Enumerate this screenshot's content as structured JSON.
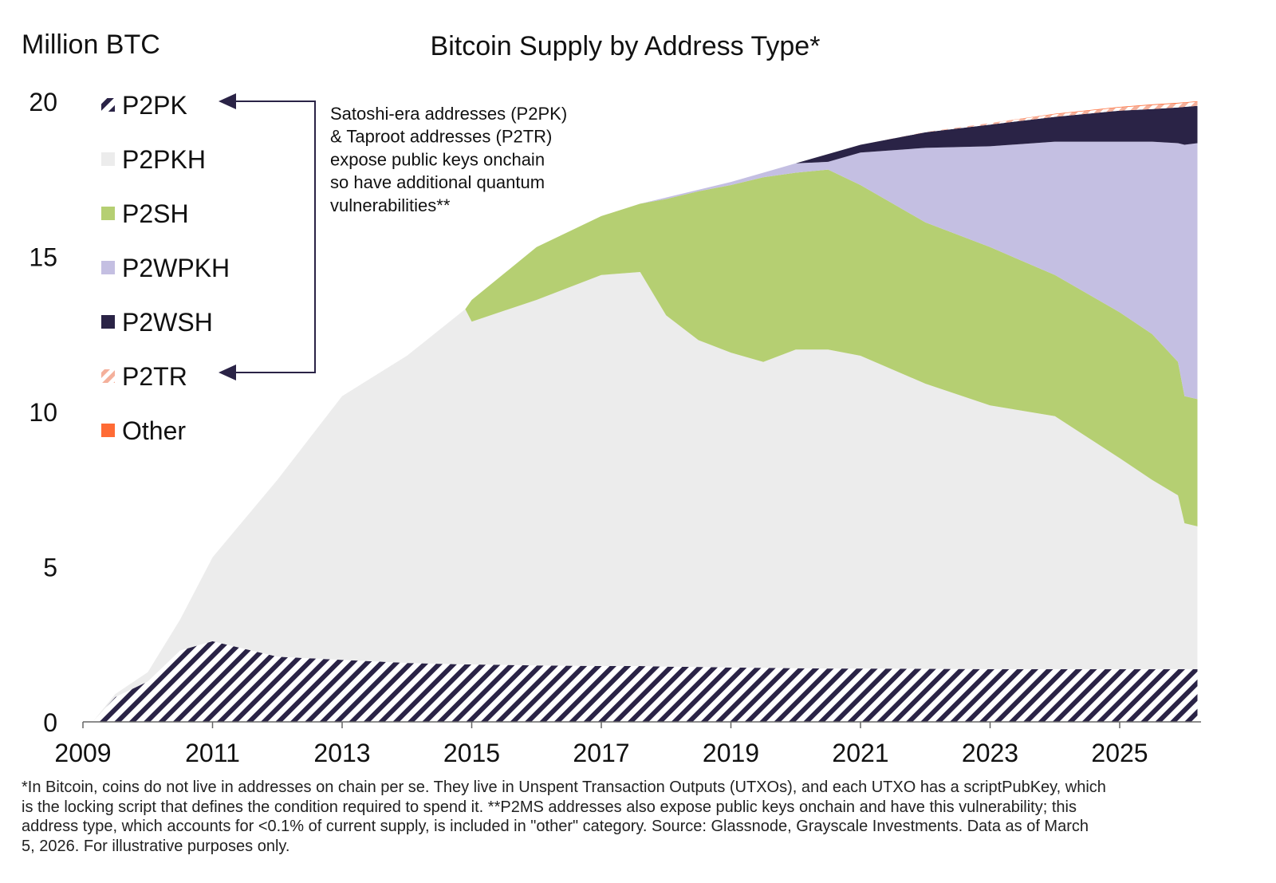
{
  "chart_data": {
    "type": "area",
    "stacked": true,
    "title": "Bitcoin Supply by Address Type*",
    "ylabel": "Million BTC",
    "xlabel": "",
    "ylim": [
      0,
      20
    ],
    "xlim": [
      2009,
      2026.2
    ],
    "yticks": [
      0,
      5,
      10,
      15,
      20
    ],
    "xticks": [
      2009,
      2011,
      2013,
      2015,
      2017,
      2019,
      2021,
      2023,
      2025
    ],
    "grid": false,
    "legend_position": "top-left",
    "x": [
      2009.15,
      2009.5,
      2010,
      2010.5,
      2011,
      2012,
      2013,
      2014,
      2014.9,
      2015,
      2016,
      2017,
      2017.6,
      2018,
      2018.5,
      2019,
      2019.5,
      2020,
      2020.5,
      2021,
      2022,
      2023,
      2024,
      2025,
      2025.5,
      2025.9,
      2026.0,
      2026.2
    ],
    "series": [
      {
        "name": "P2PK",
        "color": "#2a2346",
        "pattern": "hatched",
        "values": [
          0,
          0.8,
          1.3,
          2.3,
          2.6,
          2.1,
          2.0,
          1.9,
          1.85,
          1.85,
          1.82,
          1.8,
          1.8,
          1.78,
          1.77,
          1.75,
          1.74,
          1.73,
          1.72,
          1.72,
          1.71,
          1.7,
          1.7,
          1.7,
          1.7,
          1.7,
          1.7,
          1.7
        ]
      },
      {
        "name": "P2PKH",
        "color": "#ececec",
        "values": [
          0,
          0.1,
          0.3,
          1.0,
          2.7,
          5.7,
          8.5,
          9.9,
          11.45,
          11.05,
          11.78,
          12.6,
          12.7,
          11.32,
          10.53,
          10.15,
          9.86,
          10.27,
          10.28,
          10.08,
          9.19,
          8.5,
          8.15,
          6.8,
          6.1,
          5.6,
          4.7,
          4.6
        ]
      },
      {
        "name": "P2SH",
        "color": "#b5cf72",
        "values": [
          0,
          0,
          0,
          0,
          0,
          0,
          0,
          0,
          0,
          0.7,
          1.7,
          1.9,
          2.2,
          3.75,
          4.8,
          5.4,
          5.95,
          5.7,
          5.8,
          5.5,
          5.2,
          5.1,
          4.55,
          4.7,
          4.7,
          4.3,
          4.1,
          4.1
        ]
      },
      {
        "name": "P2WPKH",
        "color": "#c4bfe2",
        "values": [
          0,
          0,
          0,
          0,
          0,
          0,
          0,
          0,
          0,
          0,
          0,
          0,
          0,
          0.05,
          0.05,
          0.1,
          0.15,
          0.3,
          0.25,
          1.05,
          2.4,
          3.25,
          4.3,
          5.5,
          6.2,
          7.05,
          8.1,
          8.25
        ]
      },
      {
        "name": "P2WSH",
        "color": "#2a2346",
        "values": [
          0,
          0,
          0,
          0,
          0,
          0,
          0,
          0,
          0,
          0,
          0,
          0,
          0,
          0,
          0,
          0,
          0,
          0,
          0.25,
          0.25,
          0.5,
          0.7,
          0.8,
          1.0,
          1.05,
          1.15,
          1.22,
          1.2
        ]
      },
      {
        "name": "P2TR",
        "color": "#f4b09b",
        "pattern": "hatched",
        "values": [
          0,
          0,
          0,
          0,
          0,
          0,
          0,
          0,
          0,
          0,
          0,
          0,
          0,
          0,
          0,
          0,
          0,
          0,
          0,
          0,
          0.01,
          0.05,
          0.08,
          0.1,
          0.13,
          0.13,
          0.13,
          0.13
        ]
      },
      {
        "name": "Other",
        "color": "#ff6b35",
        "values": [
          0,
          0,
          0,
          0,
          0,
          0,
          0,
          0,
          0,
          0,
          0,
          0,
          0,
          0,
          0,
          0,
          0,
          0,
          0,
          0,
          0,
          0,
          0.02,
          0.02,
          0.02,
          0.02,
          0.02,
          0.02
        ]
      }
    ],
    "annotation": [
      "Satoshi-era addresses (P2PK)",
      "& Taproot addresses (P2TR)",
      "expose public keys onchain",
      "so have additional quantum",
      "vulnerabilities**"
    ]
  },
  "footnote": [
    "*In Bitcoin, coins do not live in addresses on chain per se. They live in Unspent Transaction Outputs (UTXOs), and each UTXO has a scriptPubKey, which",
    "is the locking script that defines the condition required to spend it. **P2MS addresses also expose public keys onchain and have this vulnerability; this",
    "address type, which accounts for <0.1% of current supply, is included in \"other\" category. Source: Glassnode, Grayscale Investments. Data as of March",
    "5, 2026. For illustrative purposes only."
  ]
}
